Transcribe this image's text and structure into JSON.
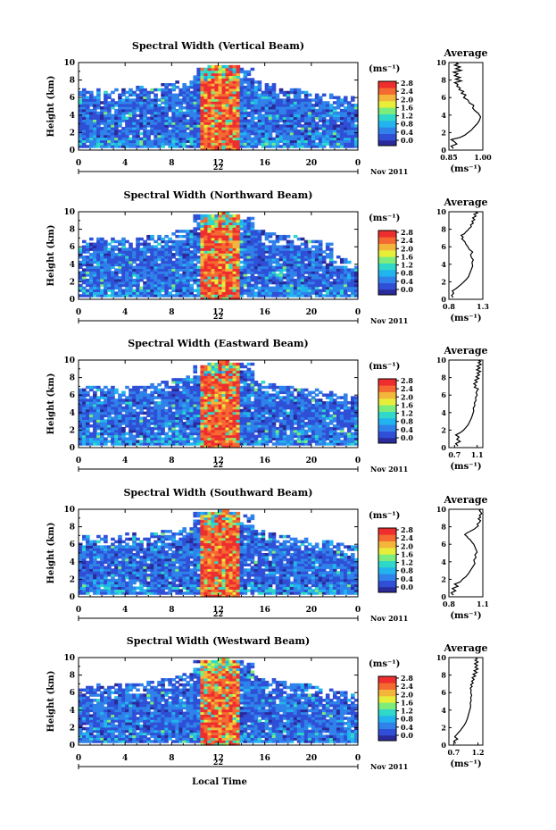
{
  "colorbar": {
    "unit": "(ms⁻¹)",
    "ticks": [
      "0.0",
      "0.4",
      "0.8",
      "1.2",
      "1.6",
      "2.0",
      "2.4",
      "2.8"
    ],
    "range": [
      0,
      3.0
    ],
    "colors": [
      "#2a2a9a",
      "#2f4fd6",
      "#2f82ea",
      "#22b4ee",
      "#2fd8c8",
      "#7cec7a",
      "#e6ee3a",
      "#f4b63a",
      "#f46a30",
      "#ee2e2e"
    ]
  },
  "x_axis": {
    "label": "Local Time",
    "ticks": [
      "0",
      "4",
      "8",
      "12",
      "16",
      "20",
      "0"
    ],
    "range": [
      0,
      24
    ],
    "date_label": "Nov 2011"
  },
  "y_axis": {
    "label": "Height (km)",
    "ticks": [
      "0",
      "2",
      "4",
      "6",
      "8",
      "10"
    ],
    "range": [
      0,
      10
    ]
  },
  "average_title": "Average",
  "average_unit": "(ms⁻¹)",
  "chart_data": [
    {
      "type": "heatmap",
      "title": "Spectral Width (Vertical Beam)",
      "day_label": "22",
      "xlabel": "",
      "ylabel": "Height (km)",
      "xlim": [
        0,
        24
      ],
      "ylim": [
        0,
        10
      ],
      "top_height_km": [
        7.0,
        7.1,
        6.9,
        7.2,
        7.0,
        7.3,
        7.1,
        7.6,
        7.8,
        7.9,
        9.5,
        9.6,
        9.8,
        9.7,
        9.5,
        7.9,
        7.6,
        7.2,
        7.0,
        6.8,
        6.6,
        6.4,
        6.2,
        6.2
      ],
      "avg_profile": {
        "xlim": [
          0.85,
          1.0
        ],
        "x_ticks": [
          "0.85",
          "1.00"
        ],
        "x": [
          0.87,
          0.86,
          0.885,
          0.875,
          0.86,
          0.9,
          0.92,
          0.935,
          0.95,
          0.96,
          0.975,
          0.985,
          0.99,
          0.98,
          0.965,
          0.955,
          0.96,
          0.94,
          0.935,
          0.915,
          0.925,
          0.905,
          0.915,
          0.895,
          0.9,
          0.885,
          0.89,
          0.875,
          0.905,
          0.88,
          0.9,
          0.875,
          0.89,
          0.87,
          0.905,
          0.88,
          0.9,
          0.875,
          0.89,
          0.88
        ],
        "y": [
          0.2,
          0.45,
          0.7,
          0.95,
          1.2,
          1.45,
          1.7,
          2.0,
          2.3,
          2.6,
          3.0,
          3.4,
          3.8,
          4.2,
          4.5,
          4.8,
          5.1,
          5.4,
          5.7,
          6.0,
          6.3,
          6.5,
          6.7,
          6.9,
          7.1,
          7.3,
          7.5,
          7.7,
          7.9,
          8.1,
          8.3,
          8.5,
          8.7,
          8.9,
          9.1,
          9.3,
          9.5,
          9.7,
          9.85,
          10.0
        ]
      }
    },
    {
      "type": "heatmap",
      "title": "Spectral Width (Northward Beam)",
      "day_label": "22",
      "xlabel": "",
      "ylabel": "Height (km)",
      "xlim": [
        0,
        24
      ],
      "ylim": [
        0,
        10
      ],
      "top_height_km": [
        6.9,
        7.0,
        7.0,
        7.1,
        6.9,
        7.2,
        7.3,
        7.5,
        7.9,
        8.0,
        9.6,
        9.8,
        9.9,
        9.7,
        9.5,
        7.8,
        7.5,
        7.4,
        7.3,
        7.0,
        6.8,
        6.6,
        5.0,
        4.8
      ],
      "avg_profile": {
        "xlim": [
          0.8,
          1.3
        ],
        "x_ticks": [
          "0.8",
          "1.3"
        ],
        "x": [
          0.86,
          0.84,
          0.87,
          0.85,
          0.9,
          0.94,
          0.98,
          1.02,
          1.06,
          1.09,
          1.11,
          1.13,
          1.15,
          1.14,
          1.16,
          1.13,
          1.12,
          1.15,
          1.1,
          1.08,
          1.05,
          1.04,
          1.02,
          0.99,
          1.01,
          0.98,
          1.03,
          1.05,
          1.08,
          1.1,
          1.13,
          1.12,
          1.16,
          1.14,
          1.18,
          1.15,
          1.2,
          1.17,
          1.22,
          1.19
        ],
        "y": [
          0.2,
          0.45,
          0.7,
          0.95,
          1.2,
          1.45,
          1.7,
          2.0,
          2.3,
          2.6,
          3.0,
          3.4,
          3.8,
          4.2,
          4.5,
          4.8,
          5.1,
          5.4,
          5.7,
          6.0,
          6.3,
          6.5,
          6.7,
          6.9,
          7.1,
          7.3,
          7.5,
          7.7,
          7.9,
          8.1,
          8.3,
          8.5,
          8.7,
          8.9,
          9.1,
          9.3,
          9.5,
          9.7,
          9.85,
          10.0
        ]
      }
    },
    {
      "type": "heatmap",
      "title": "Spectral Width (Eastward Beam)",
      "day_label": "22",
      "xlabel": "",
      "ylabel": "Height (km)",
      "xlim": [
        0,
        24
      ],
      "ylim": [
        0,
        10
      ],
      "top_height_km": [
        7.2,
        7.1,
        7.0,
        6.9,
        7.0,
        7.2,
        7.4,
        7.6,
        7.9,
        8.2,
        9.5,
        9.7,
        9.9,
        9.8,
        9.6,
        7.7,
        7.4,
        7.2,
        7.1,
        6.9,
        6.8,
        6.6,
        6.3,
        6.0
      ],
      "avg_profile": {
        "xlim": [
          0.6,
          1.2
        ],
        "x_ticks": [
          "0.7",
          "1.1"
        ],
        "x": [
          0.76,
          0.72,
          0.8,
          0.74,
          0.78,
          0.72,
          0.8,
          0.86,
          0.9,
          0.94,
          0.97,
          1.0,
          1.02,
          1.04,
          1.03,
          1.06,
          1.05,
          1.08,
          1.07,
          1.1,
          1.08,
          1.1,
          1.12,
          1.05,
          1.08,
          1.04,
          1.1,
          1.06,
          1.13,
          1.08,
          1.14,
          1.1,
          1.16,
          1.09,
          1.15,
          1.1,
          1.17,
          1.12,
          1.16,
          1.12
        ],
        "y": [
          0.2,
          0.45,
          0.7,
          0.95,
          1.2,
          1.45,
          1.7,
          2.0,
          2.3,
          2.6,
          3.0,
          3.4,
          3.8,
          4.2,
          4.5,
          4.8,
          5.1,
          5.4,
          5.7,
          6.0,
          6.3,
          6.5,
          6.7,
          6.9,
          7.1,
          7.3,
          7.5,
          7.7,
          7.9,
          8.1,
          8.3,
          8.5,
          8.7,
          8.9,
          9.1,
          9.3,
          9.5,
          9.7,
          9.85,
          10.0
        ]
      }
    },
    {
      "type": "heatmap",
      "title": "Spectral Width (Southward Beam)",
      "day_label": "22",
      "xlabel": "",
      "ylabel": "Height (km)",
      "xlim": [
        0,
        24
      ],
      "ylim": [
        0,
        10
      ],
      "top_height_km": [
        7.0,
        7.1,
        7.1,
        7.2,
        7.3,
        7.2,
        7.4,
        7.5,
        7.7,
        8.0,
        9.6,
        9.8,
        9.9,
        9.7,
        9.5,
        7.6,
        7.3,
        7.1,
        7.0,
        6.9,
        6.6,
        6.4,
        6.2,
        6.0
      ],
      "avg_profile": {
        "xlim": [
          0.8,
          1.1
        ],
        "x_ticks": [
          "0.8",
          "1.1"
        ],
        "x": [
          0.84,
          0.82,
          0.86,
          0.83,
          0.88,
          0.85,
          0.9,
          0.92,
          0.95,
          0.97,
          0.99,
          1.01,
          1.03,
          1.02,
          1.04,
          1.03,
          1.05,
          1.04,
          1.03,
          1.02,
          1.0,
          0.99,
          0.97,
          0.96,
          0.94,
          0.96,
          0.99,
          1.02,
          1.04,
          1.06,
          1.05,
          1.07,
          1.08,
          1.06,
          1.08,
          1.07,
          1.09,
          1.08,
          1.07,
          1.08
        ],
        "y": [
          0.2,
          0.45,
          0.7,
          0.95,
          1.2,
          1.45,
          1.7,
          2.0,
          2.3,
          2.6,
          3.0,
          3.4,
          3.8,
          4.2,
          4.5,
          4.8,
          5.1,
          5.4,
          5.7,
          6.0,
          6.3,
          6.5,
          6.7,
          6.9,
          7.1,
          7.3,
          7.5,
          7.7,
          7.9,
          8.1,
          8.3,
          8.5,
          8.7,
          8.9,
          9.1,
          9.3,
          9.5,
          9.7,
          9.85,
          10.0
        ]
      }
    },
    {
      "type": "heatmap",
      "title": "Spectral Width (Westward Beam)",
      "day_label": "22",
      "xlabel": "Local Time",
      "ylabel": "Height (km)",
      "xlim": [
        0,
        24
      ],
      "ylim": [
        0,
        10
      ],
      "top_height_km": [
        6.8,
        7.0,
        6.9,
        7.1,
        7.0,
        7.2,
        7.3,
        7.6,
        8.0,
        8.3,
        9.7,
        9.8,
        9.9,
        9.8,
        9.6,
        7.9,
        7.5,
        7.3,
        7.1,
        7.0,
        6.8,
        6.5,
        6.2,
        5.8
      ],
      "avg_profile": {
        "xlim": [
          0.6,
          1.3
        ],
        "x_ticks": [
          "0.7",
          "1.2"
        ],
        "x": [
          0.74,
          0.7,
          0.78,
          0.72,
          0.76,
          0.8,
          0.84,
          0.88,
          0.92,
          0.95,
          0.98,
          1.0,
          1.02,
          1.04,
          1.05,
          1.04,
          1.06,
          1.05,
          1.07,
          1.05,
          1.06,
          1.04,
          1.08,
          1.05,
          1.1,
          1.07,
          1.12,
          1.08,
          1.15,
          1.1,
          1.18,
          1.12,
          1.2,
          1.14,
          1.19,
          1.13,
          1.2,
          1.14,
          1.18,
          1.15
        ],
        "y": [
          0.2,
          0.45,
          0.7,
          0.95,
          1.2,
          1.45,
          1.7,
          2.0,
          2.3,
          2.6,
          3.0,
          3.4,
          3.8,
          4.2,
          4.5,
          4.8,
          5.1,
          5.4,
          5.7,
          6.0,
          6.3,
          6.5,
          6.7,
          6.9,
          7.1,
          7.3,
          7.5,
          7.7,
          7.9,
          8.1,
          8.3,
          8.5,
          8.7,
          8.9,
          9.1,
          9.3,
          9.5,
          9.7,
          9.85,
          10.0
        ]
      }
    }
  ]
}
